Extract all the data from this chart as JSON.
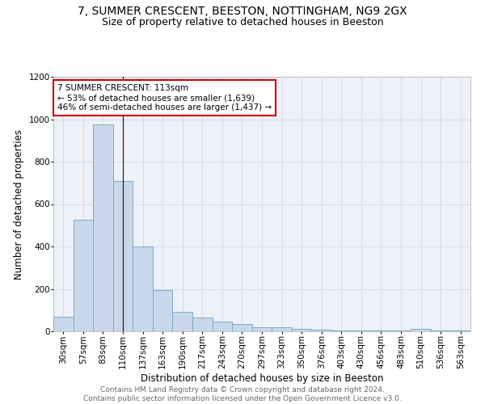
{
  "title": "7, SUMMER CRESCENT, BEESTON, NOTTINGHAM, NG9 2GX",
  "subtitle": "Size of property relative to detached houses in Beeston",
  "xlabel": "Distribution of detached houses by size in Beeston",
  "ylabel": "Number of detached properties",
  "bar_color": "#c8d8ea",
  "bar_edge_color": "#7aaac8",
  "background_color": "#eef2f8",
  "categories": [
    "30sqm",
    "57sqm",
    "83sqm",
    "110sqm",
    "137sqm",
    "163sqm",
    "190sqm",
    "217sqm",
    "243sqm",
    "270sqm",
    "297sqm",
    "323sqm",
    "350sqm",
    "376sqm",
    "403sqm",
    "430sqm",
    "456sqm",
    "483sqm",
    "510sqm",
    "536sqm",
    "563sqm"
  ],
  "values": [
    70,
    525,
    975,
    710,
    400,
    195,
    90,
    65,
    45,
    33,
    18,
    18,
    12,
    8,
    5,
    5,
    5,
    5,
    13,
    5,
    5
  ],
  "ylim": [
    0,
    1200
  ],
  "yticks": [
    0,
    200,
    400,
    600,
    800,
    1000,
    1200
  ],
  "property_line_x": 3.0,
  "annotation_text": "7 SUMMER CRESCENT: 113sqm\n← 53% of detached houses are smaller (1,639)\n46% of semi-detached houses are larger (1,437) →",
  "annotation_box_color": "white",
  "annotation_box_edge": "#cc0000",
  "footer_text": "Contains HM Land Registry data © Crown copyright and database right 2024.\nContains public sector information licensed under the Open Government Licence v3.0.",
  "grid_color": "#d0d8e4",
  "title_fontsize": 10,
  "subtitle_fontsize": 9,
  "xlabel_fontsize": 8.5,
  "ylabel_fontsize": 8.5,
  "tick_fontsize": 7.5,
  "annotation_fontsize": 7.5,
  "footer_fontsize": 6.5
}
